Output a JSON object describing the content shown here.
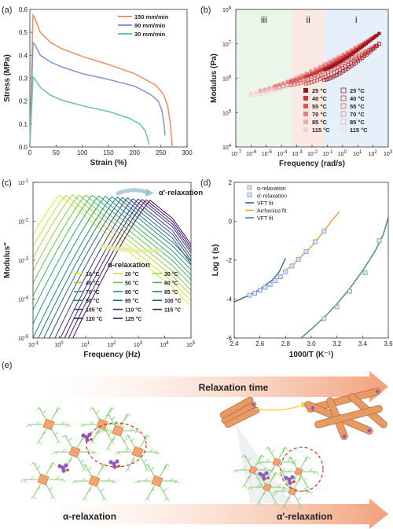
{
  "colors": {
    "a_150": "#f0916a",
    "a_90": "#8c95d0",
    "a_30": "#6cc7a6",
    "b_i": "#e6f0fa",
    "b_ii": "#fbe9e4",
    "b_iii": "#e9f6e9",
    "arrow": "#f2a07a",
    "alpha_sq": "#7aa6a0",
    "alphap_sq": "#7b8fd6",
    "vft": "#2f6b73",
    "arrhenius": "#f39c2f",
    "vft2": "#3f8a80",
    "e_cube": "#f3a36e",
    "e_chain": "#7fcf6e",
    "e_ion": "#8a5bc0",
    "e_dash": "#d32f2f"
  },
  "chart_data": [
    {
      "id": "a",
      "panel_label": "(a)",
      "type": "line",
      "xlabel": "Strain (%)",
      "ylabel": "Stress (MPa)",
      "xlim": [
        0,
        300
      ],
      "ylim": [
        0,
        0.6
      ],
      "xticks": [
        "0",
        "50",
        "100",
        "150",
        "200",
        "250",
        "300"
      ],
      "yticks": [
        "0.0",
        "0.1",
        "0.2",
        "0.3",
        "0.4",
        "0.5",
        "0.6"
      ],
      "legend_position": "top-right",
      "series": [
        {
          "name": "150 mm/min",
          "color_key": "a_150",
          "x": [
            0,
            6,
            10,
            20,
            40,
            60,
            100,
            150,
            200,
            240,
            255,
            263,
            268,
            272
          ],
          "y": [
            0,
            0.575,
            0.56,
            0.5,
            0.455,
            0.43,
            0.395,
            0.36,
            0.32,
            0.27,
            0.23,
            0.18,
            0.1,
            0.0
          ]
        },
        {
          "name": "90 mm/min",
          "color_key": "a_90",
          "x": [
            0,
            6,
            10,
            20,
            40,
            60,
            100,
            150,
            200,
            230,
            245,
            252,
            256,
            258
          ],
          "y": [
            0,
            0.455,
            0.445,
            0.4,
            0.37,
            0.35,
            0.32,
            0.295,
            0.265,
            0.23,
            0.2,
            0.16,
            0.1,
            0.05
          ]
        },
        {
          "name": "30 mm/min",
          "color_key": "a_30",
          "x": [
            0,
            6,
            10,
            20,
            40,
            60,
            100,
            150,
            190,
            210,
            220,
            225,
            228
          ],
          "y": [
            0,
            0.305,
            0.295,
            0.26,
            0.225,
            0.205,
            0.18,
            0.155,
            0.125,
            0.1,
            0.07,
            0.035,
            0.01
          ]
        }
      ]
    },
    {
      "id": "b",
      "panel_label": "(b)",
      "type": "scatter",
      "xlabel": "Frequency (rad/s)",
      "ylabel": "Modulus (Pa)",
      "xscale": "log",
      "yscale": "log",
      "xlim_exp": [
        -7,
        3
      ],
      "ylim_exp": [
        4,
        8
      ],
      "xtick_exps": [
        -7,
        -6,
        -5,
        -4,
        -3,
        -2,
        -1,
        0,
        1,
        2,
        3
      ],
      "ytick_exps": [
        4,
        5,
        6,
        7,
        8
      ],
      "tick_base": "10",
      "regions": [
        {
          "label": "iii",
          "from_exp": -7,
          "to_exp": -3.3,
          "color_key": "b_iii"
        },
        {
          "label": "ii",
          "from_exp": -3.3,
          "to_exp": -1.2,
          "color_key": "b_ii"
        },
        {
          "label": "i",
          "from_exp": -1.2,
          "to_exp": 3,
          "color_key": "b_i"
        }
      ],
      "legend_position": "bottom-right",
      "legend_filled": [
        "25 °C",
        "40 °C",
        "55 °C",
        "70 °C",
        "85 °C",
        "115 °C"
      ],
      "legend_open": [
        "25 °C",
        "40 °C",
        "55 °C",
        "70 °C",
        "85 °C",
        "115 °C"
      ],
      "series_colors": [
        "#a0141e",
        "#c23a3a",
        "#d45c5c",
        "#e18383",
        "#eeaaaa",
        "#f6cfcf"
      ],
      "storage": {
        "start_exp": [
          -1.2,
          -2.4,
          -3.4,
          -4.4,
          -5.4,
          -6.0
        ],
        "start_logG": [
          6.25,
          6.05,
          5.9,
          5.78,
          5.65,
          5.55
        ],
        "end_logG": 7.3
      },
      "loss": {
        "start_exp": [
          -1.2,
          -2.4,
          -3.4,
          -4.4,
          -5.4,
          -6.0
        ],
        "start_logG": [
          5.95,
          5.85,
          5.8,
          5.72,
          5.62,
          5.5
        ],
        "end_logG": 7.0
      }
    },
    {
      "id": "c",
      "panel_label": "(c)",
      "type": "line",
      "xlabel": "Frequency (Hz)",
      "ylabel": "Modulus''",
      "xscale": "log",
      "yscale": "log",
      "xlim_exp": [
        -1,
        5
      ],
      "ylim_exp": [
        -5,
        -1
      ],
      "xtick_exps": [
        -1,
        0,
        1,
        2,
        3,
        4,
        5
      ],
      "ytick_exps": [
        -5,
        -4,
        -3,
        -2,
        -1
      ],
      "tick_base": "10",
      "annotations": [
        "α'-relaxation",
        "α-relaxation"
      ],
      "legend_position": "bottom-right",
      "temperatures": [
        "10 °C",
        "20 °C",
        "30 °C",
        "40 °C",
        "50 °C",
        "60 °C",
        "70 °C",
        "80 °C",
        "85 °C",
        "90 °C",
        "95 °C",
        "100 °C",
        "105 °C",
        "110 °C",
        "115 °C",
        "120 °C",
        "125 °C"
      ],
      "series_colors": [
        "#e3e632",
        "#c9e038",
        "#a8d63f",
        "#86cc47",
        "#63c150",
        "#45b55a",
        "#30a767",
        "#249873",
        "#1f887c",
        "#217782",
        "#256686",
        "#2b5487",
        "#314385",
        "#38327f",
        "#3e2475",
        "#431766",
        "#470b55"
      ],
      "peak_exps": [
        0.0,
        0.25,
        0.5,
        0.75,
        1.0,
        1.25,
        1.5,
        1.75,
        2.0,
        2.2,
        2.4,
        2.6,
        2.8,
        3.0,
        3.15,
        3.3,
        3.45
      ],
      "peak_logM": [
        -1.33,
        -1.33,
        -1.32,
        -1.33,
        -1.33,
        -1.33,
        -1.35,
        -1.36,
        -1.37,
        -1.38,
        -1.39,
        -1.4,
        -1.42,
        -1.43,
        -1.44,
        -1.45,
        -1.46
      ]
    },
    {
      "id": "d",
      "panel_label": "(d)",
      "type": "scatter",
      "xlabel": "1000/T (K⁻¹)",
      "ylabel": "Log τ (s)",
      "xlim": [
        2.4,
        3.6
      ],
      "ylim": [
        -6,
        2
      ],
      "xticks": [
        "2.4",
        "2.6",
        "2.8",
        "3.0",
        "3.2",
        "3.4",
        "3.6"
      ],
      "yticks": [
        "-6",
        "-4",
        "-2",
        "0",
        "2"
      ],
      "legend_position": "top-left",
      "legend": [
        "α-relaxation",
        "α'-relaxation",
        "VFT fit",
        "Arrhenius fit",
        "VFT fit"
      ],
      "alpha_points": {
        "x": [
          3.1,
          3.2,
          3.3,
          3.42,
          3.53
        ],
        "y": [
          -5.0,
          -4.4,
          -3.6,
          -2.65,
          -1.0
        ]
      },
      "alpha_prime_points": {
        "x": [
          2.52,
          2.56,
          2.6,
          2.64,
          2.68,
          2.72,
          2.76,
          2.8,
          2.85,
          2.9,
          2.96,
          3.03,
          3.1
        ],
        "y": [
          -3.8,
          -3.7,
          -3.55,
          -3.4,
          -3.25,
          -3.05,
          -2.85,
          -2.6,
          -2.3,
          -1.95,
          -1.55,
          -1.05,
          -0.5
        ]
      },
      "vft_fit": {
        "x": [
          2.4,
          2.5,
          2.6,
          2.7,
          2.75,
          2.8
        ],
        "y": [
          -4.15,
          -3.85,
          -3.5,
          -3.0,
          -2.6,
          -1.9
        ]
      },
      "arrhenius_fit": {
        "x": [
          2.78,
          2.85,
          2.9,
          3.0,
          3.1,
          3.15,
          3.22
        ],
        "y": [
          -2.6,
          -2.3,
          -1.95,
          -1.3,
          -0.5,
          -0.05,
          0.5
        ]
      },
      "vft_fit_alpha": {
        "x": [
          2.92,
          3.0,
          3.1,
          3.2,
          3.3,
          3.4,
          3.5,
          3.56,
          3.6
        ],
        "y": [
          -6.0,
          -5.55,
          -4.95,
          -4.25,
          -3.45,
          -2.55,
          -1.5,
          -0.7,
          0.2
        ]
      }
    }
  ],
  "panel_e": {
    "panel_label": "(e)",
    "arrow_title": "Relaxation time",
    "left_label": "α-relaxation",
    "right_label": "α'-relaxation"
  }
}
